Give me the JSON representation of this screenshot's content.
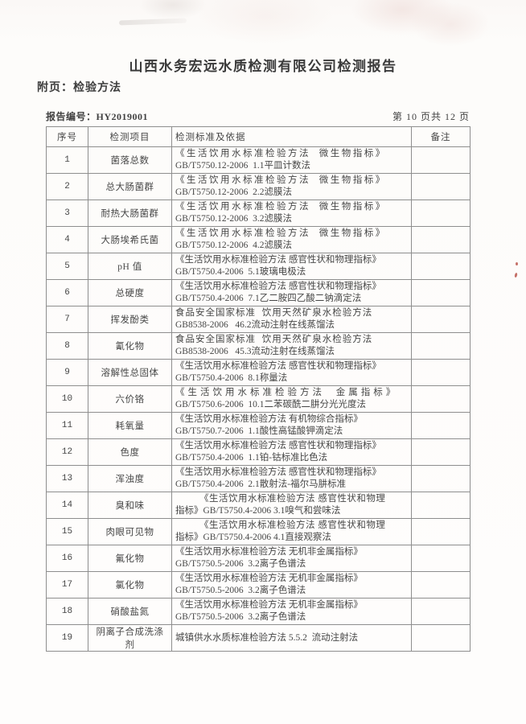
{
  "page": {
    "title": "山西水务宏远水质检测有限公司检测报告",
    "subtitle": "附页：检验方法",
    "report_no": "报告编号：HY2019001",
    "page_indicator": "第 10 页共 12 页"
  },
  "colors": {
    "paper": "#fcfbf9",
    "ink": "#454545",
    "table_border": "#8e8e8e",
    "red_speck": "#b2423 7"
  },
  "table": {
    "headers": [
      "序号",
      "检测项目",
      "检测标准及依据",
      "备注"
    ],
    "rows": [
      {
        "no": "1",
        "item": "菌落总数",
        "std": [
          "《生活饮用水标准检验方法  微生物指标》",
          "GB/T5750.12-2006  1.1平皿计数法"
        ],
        "remark": ""
      },
      {
        "no": "2",
        "item": "总大肠菌群",
        "std": [
          "《生活饮用水标准检验方法  微生物指标》",
          "GB/T5750.12-2006  2.2滤膜法"
        ],
        "remark": ""
      },
      {
        "no": "3",
        "item": "耐热大肠菌群",
        "std": [
          "《生活饮用水标准检验方法  微生物指标》",
          "GB/T5750.12-2006  3.2滤膜法"
        ],
        "remark": ""
      },
      {
        "no": "4",
        "item": "大肠埃希氏菌",
        "std": [
          "《生活饮用水标准检验方法  微生物指标》",
          "GB/T5750.12-2006  4.2滤膜法"
        ],
        "remark": ""
      },
      {
        "no": "5",
        "item": "pH 值",
        "std": [
          "《生活饮用水标准检验方法 感官性状和物理指标》",
          "GB/T5750.4-2006  5.1玻璃电极法"
        ],
        "remark": ""
      },
      {
        "no": "6",
        "item": "总硬度",
        "std": [
          "《生活饮用水标准检验方法 感官性状和物理指标》",
          "GB/T5750.4-2006  7.1乙二胺四乙酸二钠滴定法"
        ],
        "remark": ""
      },
      {
        "no": "7",
        "item": "挥发酚类",
        "std": [
          "食品安全国家标准  饮用天然矿泉水检验方法",
          "GB8538-2006   46.2流动注射在线蒸馏法"
        ],
        "remark": ""
      },
      {
        "no": "8",
        "item": "氰化物",
        "std": [
          "食品安全国家标准  饮用天然矿泉水检验方法",
          "GB8538-2006   45.3流动注射在线蒸馏法"
        ],
        "remark": ""
      },
      {
        "no": "9",
        "item": "溶解性总固体",
        "std": [
          "《生活饮用水标准检验方法 感官性状和物理指标》",
          "GB/T5750.4-2006  8.1称量法"
        ],
        "remark": ""
      },
      {
        "no": "10",
        "item": "六价铬",
        "std": [
          "《生活饮用水标准检验方法  金属指标》",
          "GB/T5750.6-2006  10.1二苯碳酰二肼分光光度法"
        ],
        "remark": ""
      },
      {
        "no": "11",
        "item": "耗氧量",
        "std": [
          "《生活饮用水标准检验方法 有机物综合指标》",
          "GB/T5750.7-2006  1.1酸性高锰酸钾滴定法"
        ],
        "remark": ""
      },
      {
        "no": "12",
        "item": "色度",
        "std": [
          "《生活饮用水标准检验方法 感官性状和物理指标》",
          "GB/T5750.4-2006  1.1铂-钴标准比色法"
        ],
        "remark": ""
      },
      {
        "no": "13",
        "item": "浑浊度",
        "std": [
          "《生活饮用水标准检验方法 感官性状和物理指标》",
          "GB/T5750.4-2006  2.1散射法-福尔马肼标准"
        ],
        "remark": ""
      },
      {
        "no": "14",
        "item": "臭和味",
        "std": [
          "《生活饮用水标准检验方法 感官性状和物理",
          "指标》GB/T5750.4-2006 3.1嗅气和尝味法"
        ],
        "remark": ""
      },
      {
        "no": "15",
        "item": "肉眼可见物",
        "std": [
          "《生活饮用水标准检验方法 感官性状和物理",
          "指标》GB/T5750.4-2006 4.1直接观察法"
        ],
        "remark": ""
      },
      {
        "no": "16",
        "item": "氟化物",
        "std": [
          "《生活饮用水标准检验方法 无机非金属指标》",
          "GB/T5750.5-2006  3.2离子色谱法"
        ],
        "remark": ""
      },
      {
        "no": "17",
        "item": "氯化物",
        "std": [
          "《生活饮用水标准检验方法 无机非金属指标》",
          "GB/T5750.5-2006  3.2离子色谱法"
        ],
        "remark": ""
      },
      {
        "no": "18",
        "item": "硝酸盐氮",
        "std": [
          "《生活饮用水标准检验方法 无机非金属指标》",
          "GB/T5750.5-2006  3.2离子色谱法"
        ],
        "remark": ""
      },
      {
        "no": "19",
        "item": "阴离子合成洗涤剂",
        "std": [
          "城镇供水水质标准检验方法 5.5.2  流动注射法"
        ],
        "remark": ""
      }
    ]
  }
}
